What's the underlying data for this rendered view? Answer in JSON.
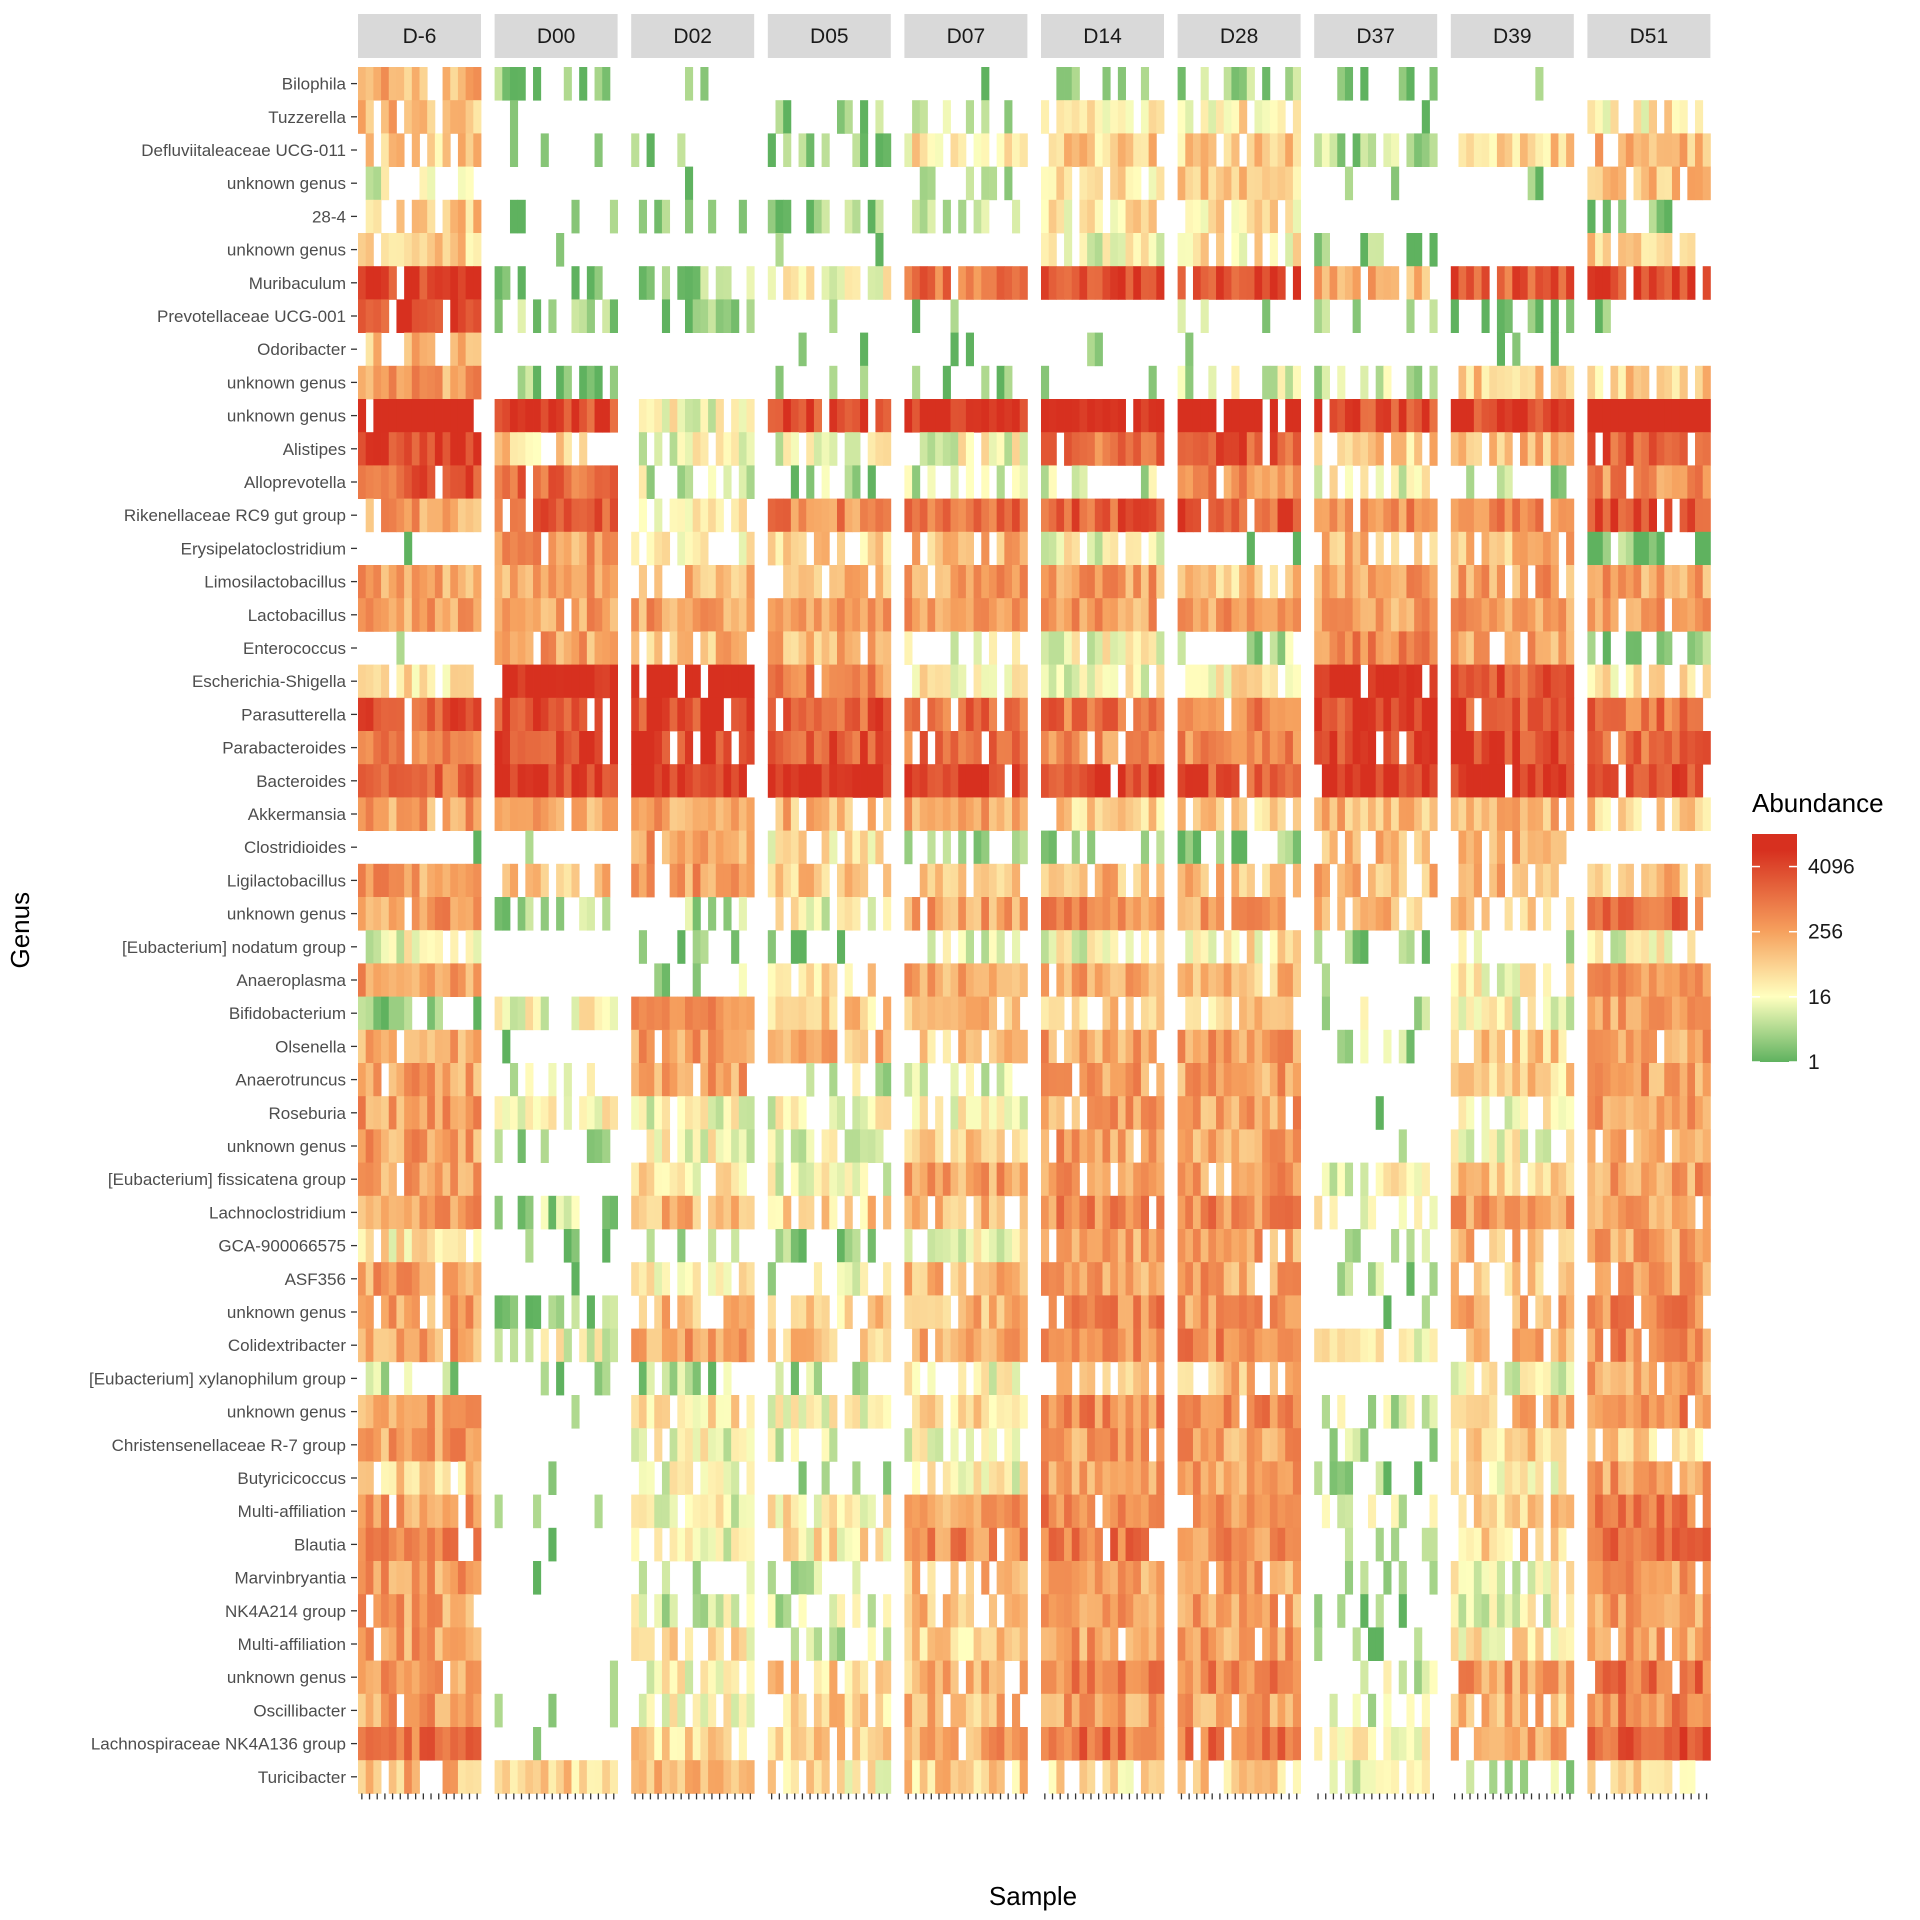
{
  "chart_data": {
    "type": "heatmap",
    "xlabel": "Sample",
    "ylabel": "Genus",
    "legend": {
      "title": "Abundance",
      "scale": "log2",
      "breaks": [
        1,
        16,
        256,
        4096
      ],
      "break_labels": [
        "1",
        "16",
        "256",
        "4096"
      ],
      "range": [
        1,
        16384
      ],
      "colors": [
        "#5fb25f",
        "#ffffbf",
        "#f6a15e",
        "#d7301f"
      ],
      "placement": "right"
    },
    "facets": [
      "D-6",
      "D00",
      "D02",
      "D05",
      "D07",
      "D14",
      "D28",
      "D37",
      "D39",
      "D51"
    ],
    "samples_per_facet": 16,
    "genera": [
      "Bilophila",
      "Tuzzerella",
      "Defluviitaleaceae UCG-011",
      "unknown genus",
      "28-4",
      "unknown genus",
      "Muribaculum",
      "Prevotellaceae UCG-001",
      "Odoribacter",
      "unknown genus",
      "unknown genus",
      "Alistipes",
      "Alloprevotella",
      "Rikenellaceae RC9 gut group",
      "Erysipelatoclostridium",
      "Limosilactobacillus",
      "Lactobacillus",
      "Enterococcus",
      "Escherichia-Shigella",
      "Parasutterella",
      "Parabacteroides",
      "Bacteroides",
      "Akkermansia",
      "Clostridioides",
      "Ligilactobacillus",
      "unknown genus",
      "[Eubacterium] nodatum group",
      "Anaeroplasma",
      "Bifidobacterium",
      "Olsenella",
      "Anaerotruncus",
      "Roseburia",
      "unknown genus",
      "[Eubacterium] fissicatena group",
      "Lachnoclostridium",
      "GCA-900066575",
      "ASF356",
      "unknown genus",
      "Colidextribacter",
      "[Eubacterium] xylanophilum group",
      "unknown genus",
      "Christensenellaceae R-7 group",
      "Butyricicoccus",
      "Multi-affiliation",
      "Blautia",
      "Marvinbryantia",
      "NK4A214 group",
      "Multi-affiliation",
      "unknown genus",
      "Oscillibacter",
      "Lachnospiraceae NK4A136 group",
      "Turicibacter"
    ],
    "levels": [
      [
        7,
        1,
        0,
        0,
        0,
        0,
        2,
        1,
        0,
        0
      ],
      [
        7,
        0,
        0,
        1,
        2,
        5,
        5,
        0,
        0,
        5
      ],
      [
        6,
        0,
        1,
        1,
        5,
        6,
        6,
        2,
        6,
        7
      ],
      [
        3,
        0,
        0,
        0,
        1,
        5,
        6,
        0,
        0,
        7
      ],
      [
        6,
        0,
        1,
        1,
        2,
        5,
        5,
        0,
        0,
        1
      ],
      [
        6,
        0,
        0,
        0,
        0,
        4,
        5,
        1,
        0,
        6
      ],
      [
        12,
        1,
        2,
        4,
        10,
        12,
        12,
        7,
        11,
        12
      ],
      [
        12,
        2,
        1,
        0,
        0,
        0,
        2,
        2,
        1,
        0
      ],
      [
        7,
        0,
        0,
        0,
        0,
        0,
        0,
        0,
        0,
        0
      ],
      [
        8,
        1,
        0,
        0,
        0,
        0,
        3,
        3,
        6,
        6
      ],
      [
        15,
        12,
        4,
        12,
        13,
        14,
        15,
        12,
        12,
        15
      ],
      [
        12,
        6,
        4,
        4,
        4,
        10,
        11,
        6,
        7,
        11
      ],
      [
        11,
        10,
        3,
        2,
        3,
        3,
        9,
        4,
        2,
        9
      ],
      [
        8,
        11,
        5,
        9,
        10,
        11,
        11,
        9,
        9,
        12
      ],
      [
        0,
        8,
        5,
        6,
        7,
        4,
        0,
        7,
        7,
        1
      ],
      [
        8,
        8,
        7,
        7,
        8,
        8,
        6,
        8,
        8,
        8
      ],
      [
        8,
        8,
        8,
        8,
        8,
        8,
        8,
        8,
        8,
        8
      ],
      [
        0,
        8,
        7,
        7,
        3,
        4,
        2,
        9,
        8,
        2
      ],
      [
        5,
        14,
        14,
        9,
        5,
        4,
        5,
        14,
        11,
        5
      ],
      [
        11,
        12,
        12,
        11,
        10,
        10,
        9,
        12,
        11,
        10
      ],
      [
        9,
        12,
        12,
        11,
        10,
        9,
        9,
        12,
        12,
        10
      ],
      [
        10,
        12,
        13,
        13,
        12,
        12,
        11,
        13,
        13,
        12
      ],
      [
        8,
        8,
        8,
        7,
        8,
        6,
        6,
        7,
        7,
        6
      ],
      [
        0,
        0,
        8,
        5,
        2,
        2,
        1,
        7,
        7,
        0
      ],
      [
        8,
        7,
        8,
        6,
        7,
        7,
        7,
        7,
        7,
        7
      ],
      [
        8,
        2,
        2,
        4,
        8,
        9,
        8,
        7,
        6,
        10
      ],
      [
        4,
        0,
        1,
        0,
        3,
        4,
        5,
        1,
        3,
        4
      ],
      [
        8,
        0,
        2,
        6,
        8,
        8,
        7,
        0,
        4,
        8
      ],
      [
        1,
        4,
        8,
        6,
        7,
        6,
        6,
        3,
        4,
        8
      ],
      [
        8,
        0,
        8,
        7,
        6,
        8,
        8,
        2,
        6,
        8
      ],
      [
        8,
        3,
        8,
        3,
        3,
        8,
        8,
        0,
        6,
        8
      ],
      [
        8,
        4,
        4,
        4,
        4,
        8,
        8,
        0,
        4,
        8
      ],
      [
        8,
        1,
        4,
        4,
        6,
        8,
        8,
        0,
        4,
        8
      ],
      [
        8,
        0,
        5,
        4,
        8,
        8,
        8,
        4,
        6,
        8
      ],
      [
        8,
        2,
        7,
        6,
        7,
        9,
        9,
        4,
        8,
        8
      ],
      [
        5,
        0,
        3,
        2,
        4,
        8,
        8,
        3,
        7,
        8
      ],
      [
        8,
        0,
        5,
        3,
        7,
        8,
        8,
        2,
        7,
        8
      ],
      [
        8,
        1,
        7,
        6,
        7,
        9,
        8,
        0,
        7,
        9
      ],
      [
        8,
        4,
        8,
        6,
        8,
        9,
        9,
        4,
        7,
        9
      ],
      [
        2,
        0,
        2,
        2,
        4,
        7,
        7,
        0,
        4,
        8
      ],
      [
        8,
        0,
        5,
        4,
        6,
        9,
        9,
        3,
        7,
        9
      ],
      [
        8,
        0,
        4,
        3,
        4,
        8,
        8,
        2,
        6,
        6
      ],
      [
        6,
        0,
        4,
        2,
        4,
        8,
        8,
        1,
        5,
        8
      ],
      [
        8,
        0,
        4,
        5,
        8,
        9,
        9,
        3,
        6,
        10
      ],
      [
        10,
        0,
        4,
        5,
        9,
        10,
        9,
        2,
        6,
        10
      ],
      [
        8,
        0,
        2,
        3,
        7,
        8,
        8,
        2,
        4,
        8
      ],
      [
        8,
        0,
        3,
        3,
        7,
        8,
        8,
        1,
        4,
        8
      ],
      [
        8,
        0,
        5,
        3,
        6,
        8,
        8,
        1,
        5,
        8
      ],
      [
        8,
        0,
        4,
        6,
        7,
        9,
        9,
        3,
        8,
        10
      ],
      [
        8,
        0,
        4,
        6,
        7,
        8,
        8,
        3,
        7,
        9
      ],
      [
        10,
        0,
        6,
        6,
        8,
        10,
        10,
        5,
        8,
        11
      ],
      [
        7,
        6,
        7,
        5,
        6,
        5,
        6,
        4,
        2,
        6
      ]
    ],
    "grid": false
  }
}
